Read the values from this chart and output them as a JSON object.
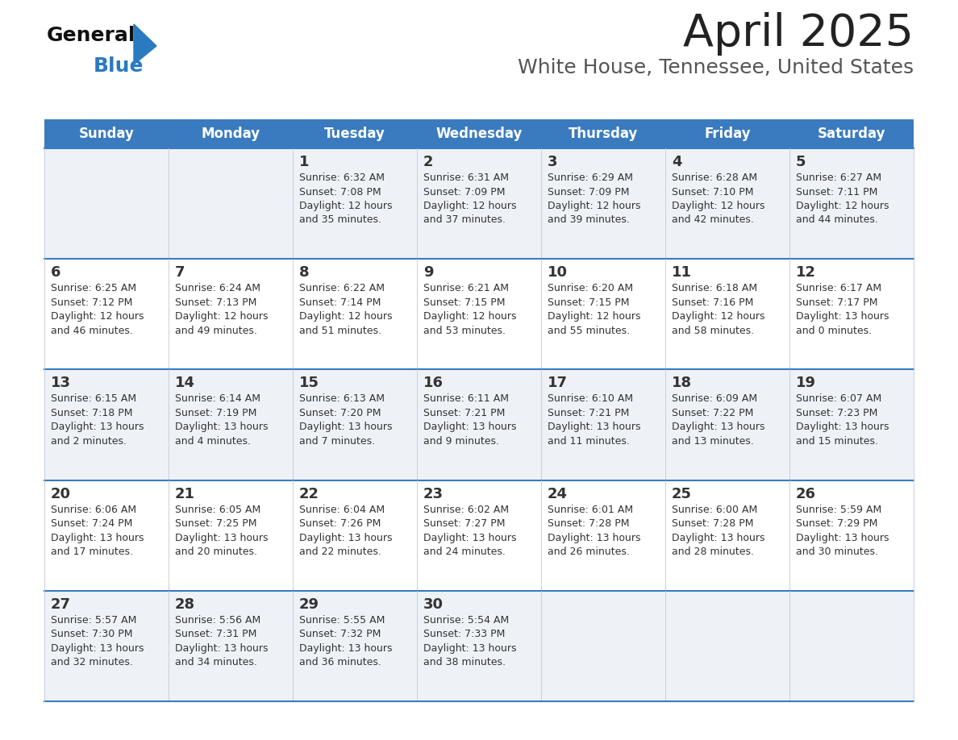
{
  "title": "April 2025",
  "subtitle": "White House, Tennessee, United States",
  "days_of_week": [
    "Sunday",
    "Monday",
    "Tuesday",
    "Wednesday",
    "Thursday",
    "Friday",
    "Saturday"
  ],
  "header_bg": "#3a7bbf",
  "header_text": "#ffffff",
  "row_bg_odd": "#eef2f7",
  "row_bg_even": "#ffffff",
  "border_color": "#3a7bbf",
  "row_border_color": "#3a7bbf",
  "grid_color": "#c0c8d8",
  "text_color": "#333333",
  "title_color": "#222222",
  "subtitle_color": "#555555",
  "logo_black": "#111111",
  "logo_blue": "#2a7abf",
  "calendar": [
    [
      {
        "day": null,
        "info": null
      },
      {
        "day": null,
        "info": null
      },
      {
        "day": "1",
        "info": "Sunrise: 6:32 AM\nSunset: 7:08 PM\nDaylight: 12 hours\nand 35 minutes."
      },
      {
        "day": "2",
        "info": "Sunrise: 6:31 AM\nSunset: 7:09 PM\nDaylight: 12 hours\nand 37 minutes."
      },
      {
        "day": "3",
        "info": "Sunrise: 6:29 AM\nSunset: 7:09 PM\nDaylight: 12 hours\nand 39 minutes."
      },
      {
        "day": "4",
        "info": "Sunrise: 6:28 AM\nSunset: 7:10 PM\nDaylight: 12 hours\nand 42 minutes."
      },
      {
        "day": "5",
        "info": "Sunrise: 6:27 AM\nSunset: 7:11 PM\nDaylight: 12 hours\nand 44 minutes."
      }
    ],
    [
      {
        "day": "6",
        "info": "Sunrise: 6:25 AM\nSunset: 7:12 PM\nDaylight: 12 hours\nand 46 minutes."
      },
      {
        "day": "7",
        "info": "Sunrise: 6:24 AM\nSunset: 7:13 PM\nDaylight: 12 hours\nand 49 minutes."
      },
      {
        "day": "8",
        "info": "Sunrise: 6:22 AM\nSunset: 7:14 PM\nDaylight: 12 hours\nand 51 minutes."
      },
      {
        "day": "9",
        "info": "Sunrise: 6:21 AM\nSunset: 7:15 PM\nDaylight: 12 hours\nand 53 minutes."
      },
      {
        "day": "10",
        "info": "Sunrise: 6:20 AM\nSunset: 7:15 PM\nDaylight: 12 hours\nand 55 minutes."
      },
      {
        "day": "11",
        "info": "Sunrise: 6:18 AM\nSunset: 7:16 PM\nDaylight: 12 hours\nand 58 minutes."
      },
      {
        "day": "12",
        "info": "Sunrise: 6:17 AM\nSunset: 7:17 PM\nDaylight: 13 hours\nand 0 minutes."
      }
    ],
    [
      {
        "day": "13",
        "info": "Sunrise: 6:15 AM\nSunset: 7:18 PM\nDaylight: 13 hours\nand 2 minutes."
      },
      {
        "day": "14",
        "info": "Sunrise: 6:14 AM\nSunset: 7:19 PM\nDaylight: 13 hours\nand 4 minutes."
      },
      {
        "day": "15",
        "info": "Sunrise: 6:13 AM\nSunset: 7:20 PM\nDaylight: 13 hours\nand 7 minutes."
      },
      {
        "day": "16",
        "info": "Sunrise: 6:11 AM\nSunset: 7:21 PM\nDaylight: 13 hours\nand 9 minutes."
      },
      {
        "day": "17",
        "info": "Sunrise: 6:10 AM\nSunset: 7:21 PM\nDaylight: 13 hours\nand 11 minutes."
      },
      {
        "day": "18",
        "info": "Sunrise: 6:09 AM\nSunset: 7:22 PM\nDaylight: 13 hours\nand 13 minutes."
      },
      {
        "day": "19",
        "info": "Sunrise: 6:07 AM\nSunset: 7:23 PM\nDaylight: 13 hours\nand 15 minutes."
      }
    ],
    [
      {
        "day": "20",
        "info": "Sunrise: 6:06 AM\nSunset: 7:24 PM\nDaylight: 13 hours\nand 17 minutes."
      },
      {
        "day": "21",
        "info": "Sunrise: 6:05 AM\nSunset: 7:25 PM\nDaylight: 13 hours\nand 20 minutes."
      },
      {
        "day": "22",
        "info": "Sunrise: 6:04 AM\nSunset: 7:26 PM\nDaylight: 13 hours\nand 22 minutes."
      },
      {
        "day": "23",
        "info": "Sunrise: 6:02 AM\nSunset: 7:27 PM\nDaylight: 13 hours\nand 24 minutes."
      },
      {
        "day": "24",
        "info": "Sunrise: 6:01 AM\nSunset: 7:28 PM\nDaylight: 13 hours\nand 26 minutes."
      },
      {
        "day": "25",
        "info": "Sunrise: 6:00 AM\nSunset: 7:28 PM\nDaylight: 13 hours\nand 28 minutes."
      },
      {
        "day": "26",
        "info": "Sunrise: 5:59 AM\nSunset: 7:29 PM\nDaylight: 13 hours\nand 30 minutes."
      }
    ],
    [
      {
        "day": "27",
        "info": "Sunrise: 5:57 AM\nSunset: 7:30 PM\nDaylight: 13 hours\nand 32 minutes."
      },
      {
        "day": "28",
        "info": "Sunrise: 5:56 AM\nSunset: 7:31 PM\nDaylight: 13 hours\nand 34 minutes."
      },
      {
        "day": "29",
        "info": "Sunrise: 5:55 AM\nSunset: 7:32 PM\nDaylight: 13 hours\nand 36 minutes."
      },
      {
        "day": "30",
        "info": "Sunrise: 5:54 AM\nSunset: 7:33 PM\nDaylight: 13 hours\nand 38 minutes."
      },
      {
        "day": null,
        "info": null
      },
      {
        "day": null,
        "info": null
      },
      {
        "day": null,
        "info": null
      }
    ]
  ]
}
